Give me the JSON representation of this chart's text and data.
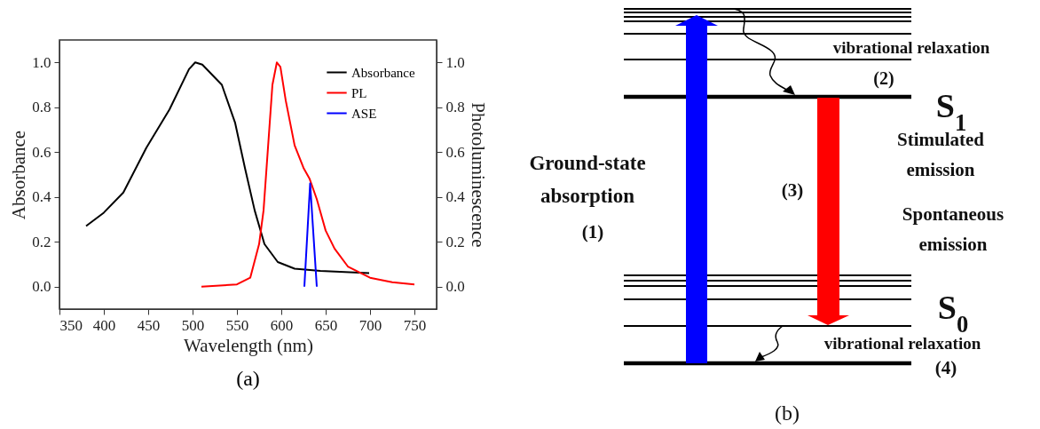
{
  "chart_data": [
    {
      "type": "line",
      "xlabel": "Wavelength (nm)",
      "ylabel": "Absorbance",
      "y2label": "Photoluminescence",
      "annotations": [
        "(a)"
      ],
      "xlim": [
        350,
        775
      ],
      "xticks": [
        350,
        400,
        450,
        500,
        550,
        600,
        650,
        700,
        750
      ],
      "ylim": [
        -0.1,
        1.1
      ],
      "yticks": [
        {
          "value": 0,
          "label": "0.0"
        },
        0.2,
        0.4,
        0.6,
        0.8,
        {
          "value": 1,
          "label": "1.0"
        }
      ],
      "y2lim": [
        -0.1,
        1.1
      ],
      "y2ticks": [
        {
          "value": 0,
          "label": "0.0"
        },
        0.2,
        0.4,
        0.6,
        0.8,
        {
          "value": 1,
          "label": "1.0"
        }
      ],
      "grid": false,
      "legend": "top right",
      "marker": "none",
      "line_style": "solid",
      "series": [
        {
          "name": "Absorbance",
          "color": "#000000",
          "x": [
            380,
            400,
            422,
            448,
            474,
            496,
            503,
            511,
            533,
            548,
            559,
            570,
            581,
            596,
            615,
            644,
            699
          ],
          "values": [
            0.27,
            0.33,
            0.42,
            0.62,
            0.79,
            0.97,
            1.0,
            0.99,
            0.9,
            0.73,
            0.53,
            0.34,
            0.19,
            0.11,
            0.08,
            0.07,
            0.06
          ]
        },
        {
          "name": "PL",
          "color": "#ff0000",
          "axis": "y2",
          "x": [
            510,
            550,
            565,
            575,
            580,
            585,
            590,
            595,
            599,
            605,
            615,
            625,
            632,
            640,
            650,
            660,
            675,
            700,
            725,
            750
          ],
          "values": [
            0.0,
            0.01,
            0.04,
            0.19,
            0.34,
            0.62,
            0.9,
            1.0,
            0.98,
            0.83,
            0.63,
            0.53,
            0.48,
            0.39,
            0.25,
            0.17,
            0.09,
            0.04,
            0.02,
            0.01
          ]
        },
        {
          "name": "ASE",
          "color": "#0000ff",
          "axis": "y2",
          "x": [
            626,
            632.5,
            640
          ],
          "values": [
            0.0,
            0.46,
            0.0
          ]
        }
      ]
    },
    {
      "type": "other",
      "annotations": [
        "vibrational relaxation",
        "(2)",
        "S$_{1}$",
        "Stimulated",
        "emission",
        "(3)",
        "Spontaneous",
        "emission",
        "Ground-state",
        "absorption",
        "(1)",
        "S$_{0}$",
        "vibrational relaxation",
        "(4)",
        "(b)"
      ]
    }
  ]
}
